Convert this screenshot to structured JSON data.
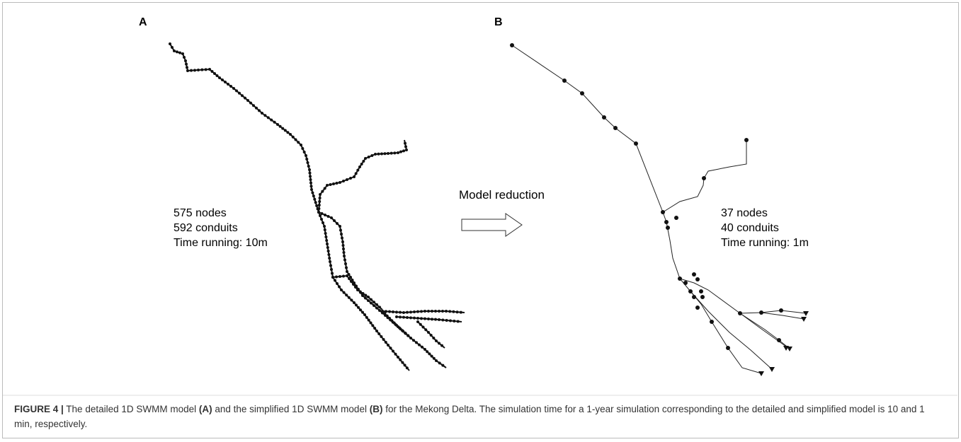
{
  "panel_a": {
    "label": "A",
    "stats": [
      "575 nodes",
      "592 conduits",
      "Time running: 10m"
    ]
  },
  "arrow_label": "Model reduction",
  "panel_b": {
    "label": "B",
    "stats": [
      "37 nodes",
      "40 conduits",
      "Time running: 1m"
    ]
  },
  "caption": {
    "figure": "FIGURE 4 |",
    "parts": [
      " The detailed 1D SWMM model ",
      "(A)",
      " and the simplified 1D SWMM model ",
      "(B)",
      " for the Mekong Delta. The simulation time for a 1-year simulation corresponding to the detailed and simplified model is 10 and 1 min, respectively."
    ]
  }
}
